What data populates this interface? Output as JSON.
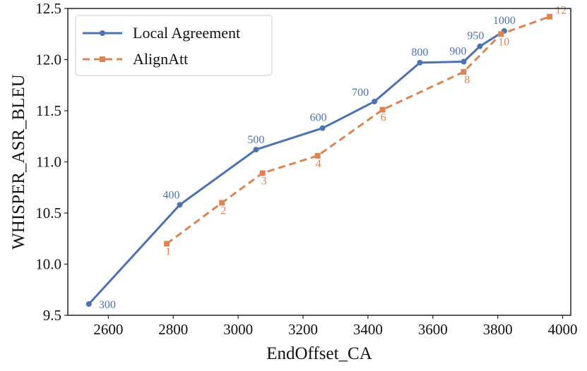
{
  "chart_data": {
    "type": "line",
    "title": "",
    "xlabel": "EndOffset_CA",
    "ylabel": "WHISPER_ASR_BLEU",
    "xlim": [
      2475,
      4025
    ],
    "ylim": [
      9.5,
      12.5
    ],
    "xticks": [
      2600,
      2800,
      3000,
      3200,
      3400,
      3600,
      3800,
      4000
    ],
    "yticks": [
      9.5,
      10.0,
      10.5,
      11.0,
      11.5,
      12.0,
      12.5
    ],
    "xtick_labels": [
      "2600",
      "2800",
      "3000",
      "3200",
      "3400",
      "3600",
      "3800",
      "4000"
    ],
    "ytick_labels": [
      "9.5",
      "10.0",
      "10.5",
      "11.0",
      "11.5",
      "12.0",
      "12.5"
    ],
    "grid": false,
    "legend_position": "top-left",
    "series": [
      {
        "name": "Local Agreement",
        "color": "#4c72b0",
        "linestyle": "solid",
        "marker": "circle",
        "x": [
          2540,
          2820,
          3055,
          3260,
          3420,
          3560,
          3695,
          3745,
          3820
        ],
        "y": [
          9.61,
          10.58,
          11.12,
          11.33,
          11.59,
          11.97,
          11.98,
          12.13,
          12.28
        ],
        "labels": [
          "300",
          "400",
          "500",
          "600",
          "700",
          "800",
          "900",
          "950",
          "1000"
        ]
      },
      {
        "name": "AlignAtt",
        "color": "#dd8452",
        "linestyle": "dashed",
        "marker": "square",
        "x": [
          2780,
          2950,
          3075,
          3245,
          3445,
          3695,
          3810,
          3960
        ],
        "y": [
          10.2,
          10.6,
          10.89,
          11.06,
          11.51,
          11.88,
          12.25,
          12.42
        ],
        "labels": [
          "1",
          "2",
          "3",
          "4",
          "6",
          "8",
          "10",
          "12"
        ]
      }
    ]
  }
}
